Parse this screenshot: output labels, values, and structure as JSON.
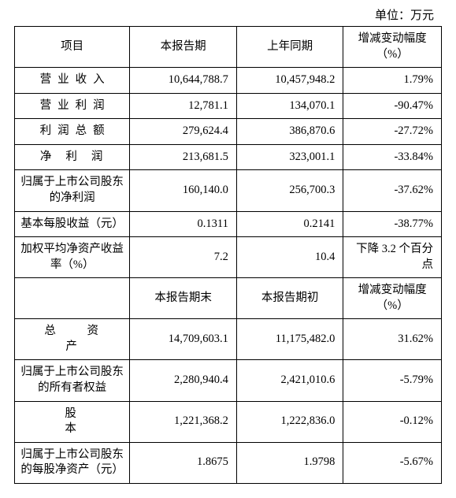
{
  "unit_label": "单位：万元",
  "header1": {
    "c1": "项目",
    "c2": "本报告期",
    "c3": "上年同期",
    "c4": "增减变动幅度（%）"
  },
  "rows1": [
    {
      "label": "营业收入",
      "cls": "rowlabel-spread4",
      "v1": "10,644,788.7",
      "v2": "10,457,948.2",
      "v3": "1.79%"
    },
    {
      "label": "营业利润",
      "cls": "rowlabel-spread4",
      "v1": "12,781.1",
      "v2": "134,070.1",
      "v3": "-90.47%"
    },
    {
      "label": "利润总额",
      "cls": "rowlabel-spread4",
      "v1": "279,624.4",
      "v2": "386,870.6",
      "v3": "-27.72%"
    },
    {
      "label": "净利润",
      "cls": "rowlabel-spread3",
      "v1": "213,681.5",
      "v2": "323,001.1",
      "v3": "-33.84%"
    },
    {
      "label": "归属于上市公司股东的净利润",
      "cls": "rowlabel",
      "v1": "160,140.0",
      "v2": "256,700.3",
      "v3": "-37.62%"
    },
    {
      "label": "基本每股收益（元）",
      "cls": "rowlabel",
      "v1": "0.1311",
      "v2": "0.2141",
      "v3": "-38.77%"
    },
    {
      "label": "加权平均净资产收益率（%）",
      "cls": "rowlabel",
      "v1": "7.2",
      "v2": "10.4",
      "v3": "下降 3.2 个百分点"
    }
  ],
  "header2": {
    "c2": "本报告期末",
    "c3": "本报告期初",
    "c4": "增减变动幅度（%）"
  },
  "rows2": [
    {
      "label": "总 资 产",
      "cls": "rowlabel-spread3",
      "v1": "14,709,603.1",
      "v2": "11,175,482.0",
      "v3": "31.62%"
    },
    {
      "label": "归属于上市公司股东的所有者权益",
      "cls": "rowlabel",
      "v1": "2,280,940.4",
      "v2": "2,421,010.6",
      "v3": "-5.79%"
    },
    {
      "label": "股　本",
      "cls": "rowlabel-spread2",
      "v1": "1,221,368.2",
      "v2": "1,222,836.0",
      "v3": "-0.12%"
    },
    {
      "label": "归属于上市公司股东的每股净资产（元）",
      "cls": "rowlabel",
      "v1": "1.8675",
      "v2": "1.9798",
      "v3": "-5.67%"
    }
  ]
}
